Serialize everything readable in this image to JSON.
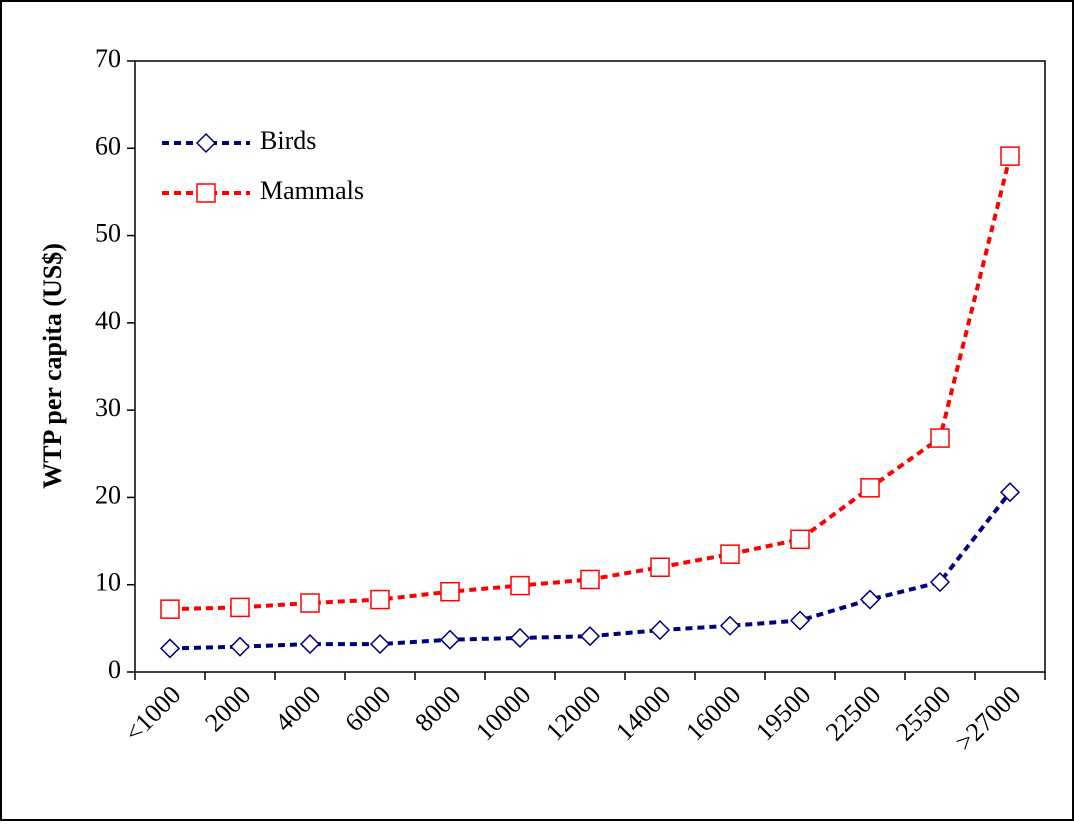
{
  "chart_data": {
    "type": "line",
    "y_label": "WTP per capita (US$)",
    "categories": [
      "<1000",
      "2000",
      "4000",
      "6000",
      "8000",
      "10000",
      "12000",
      "14000",
      "16000",
      "19500",
      "22500",
      "25500",
      ">27000"
    ],
    "series": [
      {
        "name": "Birds",
        "color": "#000080",
        "marker": "diamond",
        "values": [
          2.7,
          2.9,
          3.2,
          3.2,
          3.7,
          3.9,
          4.1,
          4.8,
          5.3,
          5.9,
          8.3,
          10.3,
          20.6
        ]
      },
      {
        "name": "Mammals",
        "color": "#ff0000",
        "marker": "square",
        "values": [
          7.2,
          7.4,
          7.9,
          8.3,
          9.2,
          9.9,
          10.6,
          12.0,
          13.5,
          15.2,
          21.1,
          26.8,
          59.1
        ]
      }
    ],
    "ylim": [
      0,
      70
    ],
    "yticks": [
      0,
      10,
      20,
      30,
      40,
      50,
      60,
      70
    ],
    "legend": "upper-left"
  }
}
